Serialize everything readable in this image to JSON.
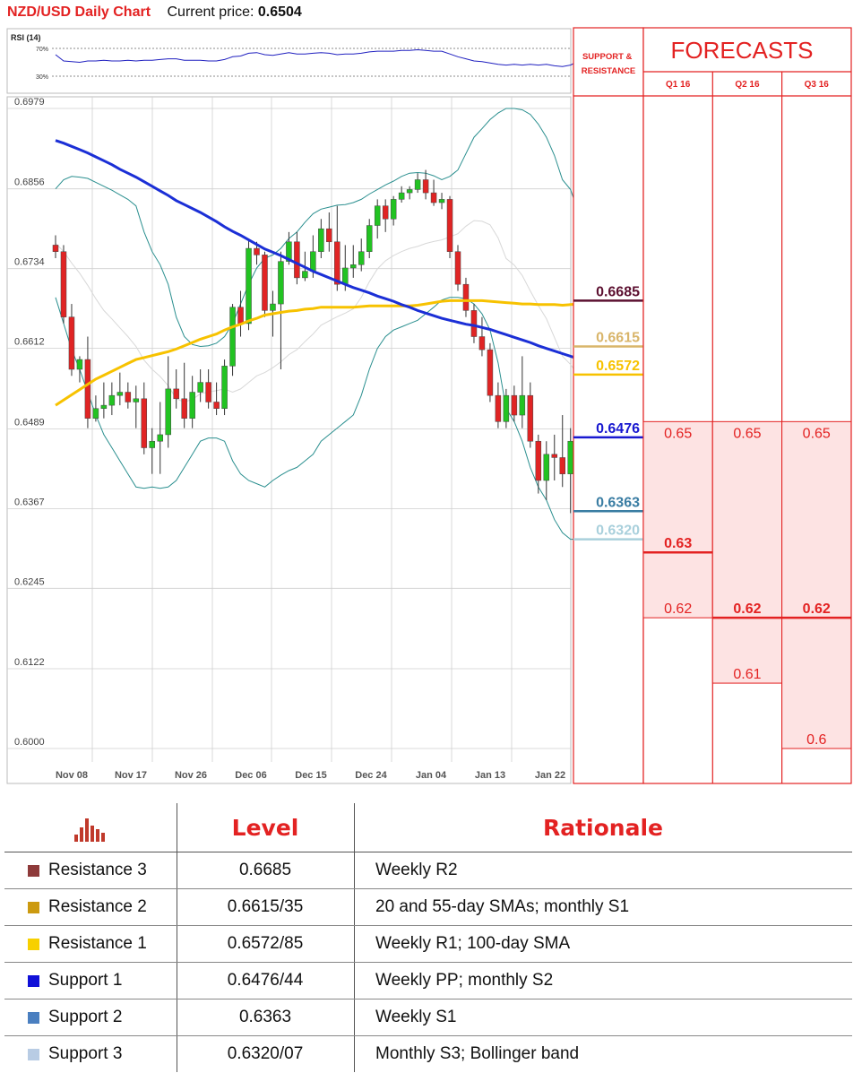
{
  "header": {
    "title": "NZD/USD Daily Chart",
    "price_label": "Current price:",
    "price_value": "0.6504"
  },
  "chart_data": {
    "type": "candlestick",
    "x_tick_labels": [
      "Nov 08",
      "Nov 17",
      "Nov 26",
      "Dec 06",
      "Dec 15",
      "Dec 24",
      "Jan 04",
      "Jan 13",
      "Jan 22"
    ],
    "y_tick_labels": [
      "0.6979",
      "0.6856",
      "0.6734",
      "0.6612",
      "0.6489",
      "0.6367",
      "0.6245",
      "0.6122",
      "0.6000"
    ],
    "ylim": [
      0.6,
      0.6979
    ],
    "candles": [
      [
        0.677,
        0.6785,
        0.675,
        0.676
      ],
      [
        0.676,
        0.677,
        0.665,
        0.666
      ],
      [
        0.666,
        0.668,
        0.657,
        0.658
      ],
      [
        0.658,
        0.66,
        0.656,
        0.6595
      ],
      [
        0.6595,
        0.663,
        0.649,
        0.6505
      ],
      [
        0.6505,
        0.654,
        0.65,
        0.652
      ],
      [
        0.652,
        0.656,
        0.6505,
        0.6525
      ],
      [
        0.6525,
        0.656,
        0.651,
        0.654
      ],
      [
        0.654,
        0.6575,
        0.6525,
        0.6545
      ],
      [
        0.6545,
        0.656,
        0.652,
        0.653
      ],
      [
        0.653,
        0.6555,
        0.649,
        0.6535
      ],
      [
        0.6535,
        0.656,
        0.645,
        0.646
      ],
      [
        0.646,
        0.649,
        0.642,
        0.647
      ],
      [
        0.647,
        0.653,
        0.642,
        0.648
      ],
      [
        0.648,
        0.66,
        0.646,
        0.655
      ],
      [
        0.655,
        0.658,
        0.652,
        0.6535
      ],
      [
        0.6535,
        0.659,
        0.649,
        0.6505
      ],
      [
        0.6505,
        0.657,
        0.649,
        0.6545
      ],
      [
        0.6545,
        0.658,
        0.653,
        0.656
      ],
      [
        0.656,
        0.658,
        0.652,
        0.653
      ],
      [
        0.653,
        0.656,
        0.651,
        0.652
      ],
      [
        0.652,
        0.6595,
        0.651,
        0.6585
      ],
      [
        0.6585,
        0.668,
        0.657,
        0.6675
      ],
      [
        0.6675,
        0.67,
        0.663,
        0.665
      ],
      [
        0.665,
        0.678,
        0.664,
        0.6765
      ],
      [
        0.6765,
        0.6775,
        0.674,
        0.6755
      ],
      [
        0.6755,
        0.676,
        0.666,
        0.667
      ],
      [
        0.667,
        0.67,
        0.663,
        0.668
      ],
      [
        0.668,
        0.676,
        0.658,
        0.6745
      ],
      [
        0.6745,
        0.679,
        0.674,
        0.6775
      ],
      [
        0.6775,
        0.679,
        0.671,
        0.672
      ],
      [
        0.672,
        0.676,
        0.6715,
        0.673
      ],
      [
        0.673,
        0.6785,
        0.672,
        0.676
      ],
      [
        0.676,
        0.681,
        0.675,
        0.6795
      ],
      [
        0.6795,
        0.682,
        0.676,
        0.6775
      ],
      [
        0.6775,
        0.683,
        0.67,
        0.671
      ],
      [
        0.671,
        0.677,
        0.67,
        0.6735
      ],
      [
        0.6735,
        0.677,
        0.672,
        0.674
      ],
      [
        0.674,
        0.678,
        0.673,
        0.676
      ],
      [
        0.676,
        0.681,
        0.675,
        0.68
      ],
      [
        0.68,
        0.684,
        0.678,
        0.683
      ],
      [
        0.683,
        0.684,
        0.679,
        0.681
      ],
      [
        0.681,
        0.6845,
        0.68,
        0.684
      ],
      [
        0.684,
        0.686,
        0.6835,
        0.685
      ],
      [
        0.685,
        0.686,
        0.684,
        0.6855
      ],
      [
        0.6855,
        0.688,
        0.685,
        0.687
      ],
      [
        0.687,
        0.6885,
        0.684,
        0.685
      ],
      [
        0.685,
        0.687,
        0.683,
        0.6835
      ],
      [
        0.6835,
        0.685,
        0.6825,
        0.684
      ],
      [
        0.684,
        0.6845,
        0.675,
        0.676
      ],
      [
        0.676,
        0.677,
        0.67,
        0.671
      ],
      [
        0.671,
        0.672,
        0.666,
        0.667
      ],
      [
        0.667,
        0.668,
        0.662,
        0.663
      ],
      [
        0.663,
        0.666,
        0.66,
        0.661
      ],
      [
        0.661,
        0.662,
        0.653,
        0.654
      ],
      [
        0.654,
        0.656,
        0.649,
        0.65
      ],
      [
        0.65,
        0.655,
        0.649,
        0.654
      ],
      [
        0.654,
        0.6555,
        0.65,
        0.651
      ],
      [
        0.651,
        0.66,
        0.649,
        0.654
      ],
      [
        0.654,
        0.656,
        0.646,
        0.647
      ],
      [
        0.647,
        0.648,
        0.639,
        0.641
      ],
      [
        0.641,
        0.647,
        0.638,
        0.645
      ],
      [
        0.645,
        0.648,
        0.641,
        0.6445
      ],
      [
        0.6445,
        0.651,
        0.64,
        0.642
      ],
      [
        0.642,
        0.649,
        0.636,
        0.647
      ],
      [
        0.647,
        0.655,
        0.646,
        0.654
      ],
      [
        0.654,
        0.656,
        0.649,
        0.6504
      ]
    ],
    "sma_100": [
      0.6525,
      0.6533,
      0.6541,
      0.6549,
      0.6557,
      0.6565,
      0.6571,
      0.6577,
      0.6583,
      0.6589,
      0.6595,
      0.6598,
      0.6601,
      0.6604,
      0.6607,
      0.6611,
      0.6616,
      0.6621,
      0.6626,
      0.663,
      0.6634,
      0.664,
      0.6645,
      0.6649,
      0.6654,
      0.6658,
      0.6663,
      0.6665,
      0.6667,
      0.6669,
      0.667,
      0.6672,
      0.6673,
      0.6675,
      0.6675,
      0.6675,
      0.6675,
      0.6675,
      0.6676,
      0.6677,
      0.6677,
      0.6677,
      0.6677,
      0.6677,
      0.6677,
      0.6678,
      0.668,
      0.6682,
      0.6684,
      0.6685,
      0.6685,
      0.6685,
      0.6685,
      0.6685,
      0.6684,
      0.6683,
      0.6682,
      0.6681,
      0.668,
      0.668,
      0.6679,
      0.6679,
      0.6679,
      0.6678,
      0.6679,
      0.668,
      0.668
    ],
    "sma_55": [
      0.693,
      0.6926,
      0.6921,
      0.6916,
      0.6911,
      0.6905,
      0.6899,
      0.6893,
      0.6886,
      0.688,
      0.6874,
      0.6867,
      0.686,
      0.6853,
      0.6846,
      0.6838,
      0.6832,
      0.6826,
      0.682,
      0.6813,
      0.6806,
      0.6798,
      0.6791,
      0.6785,
      0.6778,
      0.6771,
      0.6764,
      0.6759,
      0.6754,
      0.6748,
      0.6742,
      0.6736,
      0.673,
      0.6725,
      0.672,
      0.6715,
      0.671,
      0.6705,
      0.6701,
      0.6697,
      0.6692,
      0.6688,
      0.6684,
      0.6679,
      0.6675,
      0.667,
      0.6666,
      0.6662,
      0.6658,
      0.6655,
      0.6652,
      0.6649,
      0.6647,
      0.6644,
      0.6641,
      0.6637,
      0.6633,
      0.6629,
      0.6625,
      0.6621,
      0.6616,
      0.6612,
      0.6608,
      0.6604,
      0.66,
      0.6596,
      0.6593
    ],
    "bb_upper": [
      0.6856,
      0.687,
      0.6875,
      0.6874,
      0.6872,
      0.6866,
      0.686,
      0.6854,
      0.6847,
      0.684,
      0.683,
      0.679,
      0.676,
      0.674,
      0.671,
      0.666,
      0.663,
      0.6618,
      0.6615,
      0.6616,
      0.662,
      0.663,
      0.665,
      0.668,
      0.671,
      0.6735,
      0.675,
      0.6755,
      0.6765,
      0.678,
      0.679,
      0.6805,
      0.6818,
      0.6825,
      0.6828,
      0.6831,
      0.6832,
      0.6835,
      0.684,
      0.6848,
      0.6855,
      0.6862,
      0.6868,
      0.6875,
      0.688,
      0.6881,
      0.688,
      0.6876,
      0.687,
      0.6875,
      0.6885,
      0.691,
      0.6935,
      0.6948,
      0.6962,
      0.6972,
      0.6979,
      0.6979,
      0.6977,
      0.697,
      0.6955,
      0.6935,
      0.6907,
      0.687,
      0.6855,
      0.682,
      0.678
    ],
    "bb_lower": [
      0.669,
      0.665,
      0.661,
      0.658,
      0.6545,
      0.651,
      0.648,
      0.646,
      0.644,
      0.642,
      0.64,
      0.6398,
      0.64,
      0.6398,
      0.64,
      0.641,
      0.643,
      0.645,
      0.647,
      0.6475,
      0.6475,
      0.647,
      0.644,
      0.642,
      0.641,
      0.6405,
      0.64,
      0.641,
      0.6418,
      0.6425,
      0.643,
      0.644,
      0.645,
      0.647,
      0.648,
      0.649,
      0.65,
      0.651,
      0.654,
      0.658,
      0.6612,
      0.663,
      0.664,
      0.6645,
      0.665,
      0.6655,
      0.6665,
      0.6675,
      0.6686,
      0.669,
      0.669,
      0.6688,
      0.668,
      0.6665,
      0.664,
      0.659,
      0.652,
      0.65,
      0.647,
      0.643,
      0.64,
      0.638,
      0.635,
      0.633,
      0.632,
      0.632,
      0.6315
    ],
    "rsi": {
      "label": "RSI (14)",
      "levels": [
        "70%",
        "30%"
      ],
      "values": [
        61,
        52,
        51,
        50,
        52,
        52,
        53,
        52,
        52,
        53,
        52,
        53,
        53,
        54,
        55,
        55,
        53,
        53,
        53,
        52,
        52,
        54,
        58,
        59,
        63,
        64,
        61,
        60,
        62,
        64,
        62,
        62,
        63,
        64,
        63,
        61,
        62,
        62,
        63,
        65,
        66,
        66,
        66,
        67,
        67,
        68,
        67,
        66,
        66,
        62,
        58,
        55,
        52,
        51,
        49,
        47,
        46,
        47,
        46,
        47,
        46,
        47,
        45,
        44,
        46,
        52,
        50
      ]
    },
    "sr_levels": [
      {
        "label": "0.6685",
        "value": 0.6685,
        "color": "#5c1030"
      },
      {
        "label": "0.6615",
        "value": 0.6615,
        "color": "#d9b56a"
      },
      {
        "label": "0.6572",
        "value": 0.6572,
        "color": "#f7c200"
      },
      {
        "label": "0.6476",
        "value": 0.6476,
        "color": "#1818d0"
      },
      {
        "label": "0.6363",
        "value": 0.6363,
        "color": "#3a7da3"
      },
      {
        "label": "0.6320",
        "value": 0.632,
        "color": "#a9d0dc"
      }
    ],
    "sr_header": "SUPPORT & RESISTANCE",
    "forecast_title": "FORECASTS",
    "forecasts": [
      {
        "quarter": "Q1 16",
        "max": 0.65,
        "max_label": "0.65",
        "likely": 0.63,
        "likely_label": "0.63",
        "min": 0.62,
        "min_label": "0.62"
      },
      {
        "quarter": "Q2 16",
        "max": 0.65,
        "max_label": "0.65",
        "likely": 0.62,
        "likely_label": "0.62",
        "min": 0.61,
        "min_label": "0.61"
      },
      {
        "quarter": "Q3 16",
        "max": 0.65,
        "max_label": "0.65",
        "likely": 0.62,
        "likely_label": "0.62",
        "min": 0.6,
        "min_label": "0.6"
      }
    ],
    "colors": {
      "up": "#22c322",
      "down": "#e02424",
      "sma_100": "#f7c200",
      "sma_55": "#1b2fd6",
      "bands": "#2a8f8f",
      "forecast": "#e32222"
    }
  },
  "table": {
    "headers": {
      "level": "Level",
      "rationale": "Rationale"
    },
    "icon": "bar-chart-icon",
    "rows": [
      {
        "name": "Resistance 3",
        "level": "0.6685",
        "rationale": "Weekly R2",
        "color": "#8e3a3a"
      },
      {
        "name": "Resistance 2",
        "level": "0.6615/35",
        "rationale": "20 and 55-day SMAs; monthly S1",
        "color": "#cc9a10"
      },
      {
        "name": "Resistance 1",
        "level": "0.6572/85",
        "rationale": "Weekly R1; 100-day SMA",
        "color": "#f7d000"
      },
      {
        "name": "Support 1",
        "level": "0.6476/44",
        "rationale": "Weekly PP; monthly S2",
        "color": "#1010d8"
      },
      {
        "name": "Support 2",
        "level": "0.6363",
        "rationale": "Weekly S1",
        "color": "#4a7fc0"
      },
      {
        "name": "Support 3",
        "level": "0.6320/07",
        "rationale": "Monthly S3; Bollinger band",
        "color": "#b8cce4"
      }
    ]
  }
}
